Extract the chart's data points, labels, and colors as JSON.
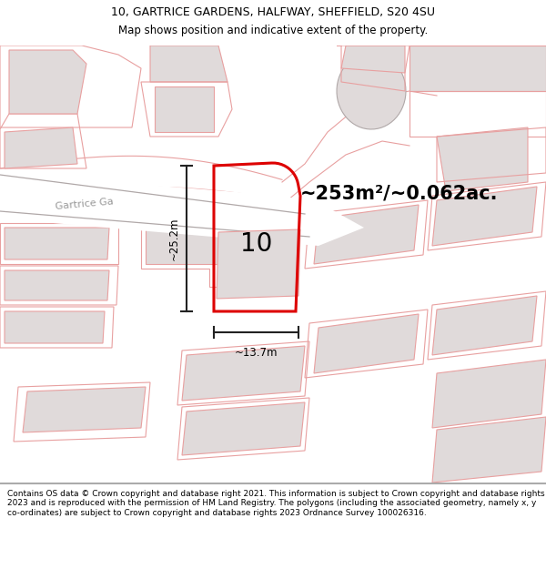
{
  "title_line1": "10, GARTRICE GARDENS, HALFWAY, SHEFFIELD, S20 4SU",
  "title_line2": "Map shows position and indicative extent of the property.",
  "area_label": "~253m²/~0.062ac.",
  "street_label": "Gartrice Ga",
  "property_number": "10",
  "dim_width": "~13.7m",
  "dim_height": "~25.2m",
  "footer_text": "Contains OS data © Crown copyright and database right 2021. This information is subject to Crown copyright and database rights 2023 and is reproduced with the permission of HM Land Registry. The polygons (including the associated geometry, namely x, y co-ordinates) are subject to Crown copyright and database rights 2023 Ordnance Survey 100026316.",
  "map_bg": "#ffffff",
  "building_fill": "#e0dada",
  "plot_line_color": "#dd0000",
  "dim_line_color": "#222222",
  "pink_line_color": "#e8a0a0",
  "gray_line_color": "#b0a8a8",
  "street_text_color": "#999999",
  "title_color": "#000000",
  "footer_color": "#000000",
  "title_fontsize": 9,
  "subtitle_fontsize": 8.5,
  "area_fontsize": 15,
  "property_num_fontsize": 20,
  "dim_fontsize": 8.5,
  "street_fontsize": 8,
  "footer_fontsize": 6.5
}
